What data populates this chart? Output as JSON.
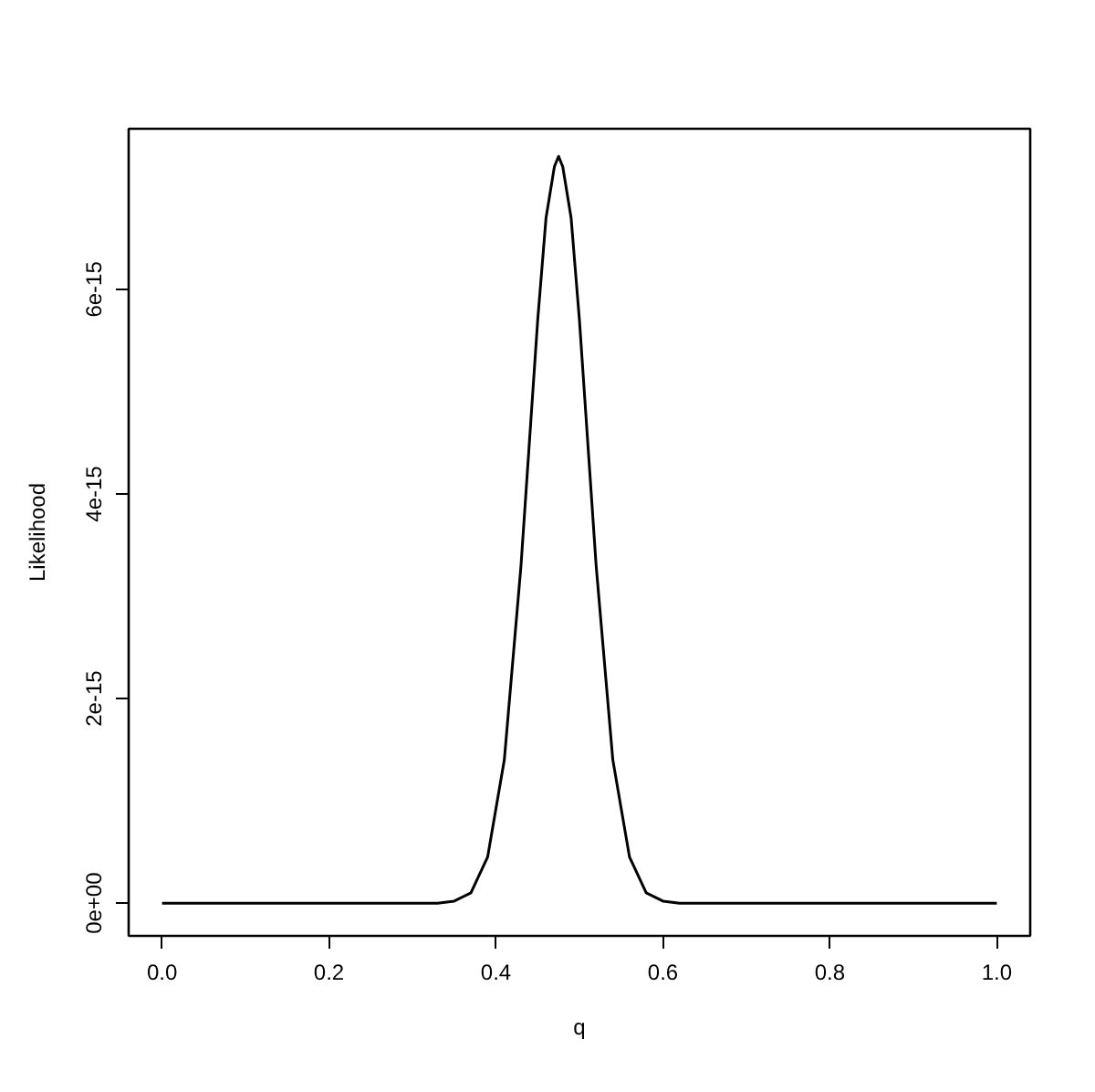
{
  "chart_data": {
    "type": "line",
    "xlabel": "q",
    "ylabel": "Likelihood",
    "x": [
      0,
      0.1,
      0.2,
      0.3,
      0.33,
      0.35,
      0.37,
      0.39,
      0.41,
      0.43,
      0.45,
      0.46,
      0.47,
      0.475,
      0.48,
      0.49,
      0.5,
      0.52,
      0.54,
      0.56,
      0.58,
      0.6,
      0.62,
      0.65,
      0.7,
      0.8,
      0.9,
      1.0
    ],
    "series": [
      {
        "color": "#000000",
        "values": [
          0,
          0,
          0,
          0,
          0,
          2e-17,
          1e-16,
          4.5e-16,
          1.4e-15,
          3.3e-15,
          5.7e-15,
          6.7e-15,
          7.2e-15,
          7.3e-15,
          7.2e-15,
          6.7e-15,
          5.7e-15,
          3.3e-15,
          1.4e-15,
          4.5e-16,
          1e-16,
          2e-17,
          0,
          0,
          0,
          0,
          0,
          0
        ]
      }
    ],
    "xlim": [
      -0.04,
      1.04
    ],
    "ylim": [
      -3.2e-16,
      7.57e-15
    ],
    "xticks": [
      {
        "value": 0,
        "label": "0.0"
      },
      {
        "value": 0.2,
        "label": "0.2"
      },
      {
        "value": 0.4,
        "label": "0.4"
      },
      {
        "value": 0.6,
        "label": "0.6"
      },
      {
        "value": 0.8,
        "label": "0.8"
      },
      {
        "value": 1.0,
        "label": "1.0"
      }
    ],
    "yticks": [
      {
        "value": 0,
        "label": "0e+00"
      },
      {
        "value": 2e-15,
        "label": "2e-15"
      },
      {
        "value": 4e-15,
        "label": "4e-15"
      },
      {
        "value": 6e-15,
        "label": "6e-15"
      }
    ],
    "grid": false,
    "marker": "none",
    "line_style": "solid"
  }
}
